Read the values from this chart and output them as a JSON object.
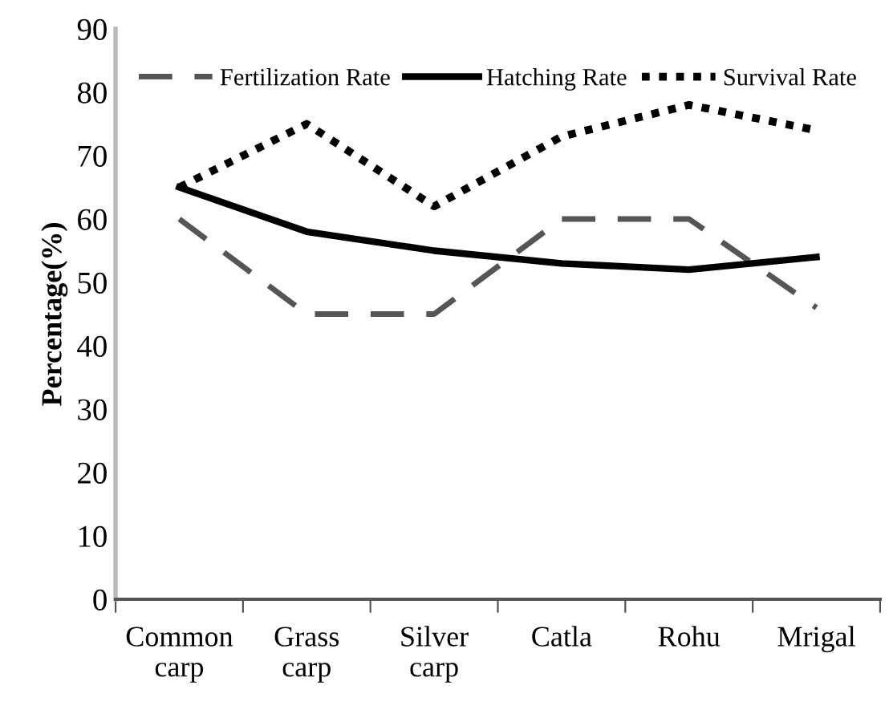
{
  "chart_data": {
    "type": "line",
    "ylabel": "Percentage(%)",
    "categories": [
      "Common\ncarp",
      "Grass\ncarp",
      "Silver\ncarp",
      "Catla",
      "Rohu",
      "Mrigal"
    ],
    "series": [
      {
        "name": "Fertilization Rate",
        "color": "#555555",
        "line_style": "dashed",
        "values": [
          60,
          45,
          45,
          60,
          60,
          46
        ]
      },
      {
        "name": "Hatching Rate",
        "color": "#000000",
        "line_style": "solid",
        "values": [
          65,
          58,
          55,
          53,
          52,
          54
        ]
      },
      {
        "name": "Survival Rate",
        "color": "#000000",
        "line_style": "dotted",
        "values": [
          65,
          75,
          62,
          73,
          78,
          74
        ]
      }
    ],
    "ylim": [
      0,
      90
    ],
    "yticks": [
      0,
      10,
      20,
      30,
      40,
      50,
      60,
      70,
      80,
      90
    ],
    "grid": false,
    "legend": "top",
    "marker": "none"
  }
}
